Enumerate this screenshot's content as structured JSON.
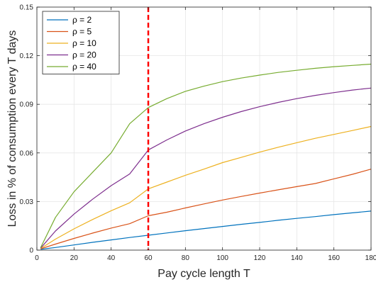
{
  "chart_data": {
    "type": "line",
    "title": "",
    "xlabel": "Pay cycle length T",
    "ylabel": "Loss in % of consumption every T days",
    "xlim": [
      0,
      180
    ],
    "ylim": [
      0,
      0.15
    ],
    "xticks": [
      0,
      20,
      40,
      60,
      80,
      100,
      120,
      140,
      160,
      180
    ],
    "yticks": [
      0,
      0.03,
      0.06,
      0.09,
      0.12,
      0.15
    ],
    "xtick_labels": [
      "0",
      "20",
      "40",
      "60",
      "80",
      "100",
      "120",
      "140",
      "160",
      "180"
    ],
    "ytick_labels": [
      "0",
      "0.03",
      "0.06",
      "0.09",
      "0.12",
      "0.15"
    ],
    "grid": true,
    "legend_position": "top-left",
    "x": [
      2,
      10,
      20,
      30,
      40,
      50,
      60,
      70,
      80,
      90,
      100,
      110,
      120,
      130,
      140,
      150,
      160,
      170,
      180
    ],
    "series": [
      {
        "name": "ρ = 2",
        "color": "#0072BD",
        "values": [
          0.0005,
          0.0016,
          0.0032,
          0.0048,
          0.0063,
          0.0078,
          0.0092,
          0.0106,
          0.012,
          0.0133,
          0.0146,
          0.0159,
          0.0171,
          0.0184,
          0.0196,
          0.0207,
          0.0219,
          0.023,
          0.0241
        ]
      },
      {
        "name": "ρ = 5",
        "color": "#D95319",
        "values": [
          0.0008,
          0.0037,
          0.0072,
          0.0105,
          0.0136,
          0.0163,
          0.0212,
          0.0234,
          0.026,
          0.0285,
          0.0309,
          0.0331,
          0.0352,
          0.0372,
          0.0392,
          0.0411,
          0.044,
          0.0468,
          0.05
        ]
      },
      {
        "name": "ρ = 10",
        "color": "#EDB120",
        "values": [
          0.001,
          0.0068,
          0.0131,
          0.0189,
          0.0243,
          0.0292,
          0.0378,
          0.042,
          0.0462,
          0.05,
          0.054,
          0.0572,
          0.0605,
          0.0635,
          0.0663,
          0.069,
          0.0714,
          0.0738,
          0.0763
        ]
      },
      {
        "name": "ρ = 20",
        "color": "#7E2F8E",
        "values": [
          0.0012,
          0.0118,
          0.0222,
          0.0314,
          0.0398,
          0.047,
          0.0618,
          0.068,
          0.0735,
          0.078,
          0.082,
          0.0855,
          0.0885,
          0.0912,
          0.0935,
          0.0955,
          0.0972,
          0.0988,
          0.1
        ]
      },
      {
        "name": "ρ = 40",
        "color": "#77AC30",
        "values": [
          0.0015,
          0.0202,
          0.036,
          0.048,
          0.06,
          0.078,
          0.088,
          0.0935,
          0.098,
          0.1012,
          0.104,
          0.1062,
          0.108,
          0.1097,
          0.111,
          0.1122,
          0.1132,
          0.114,
          0.1148
        ]
      }
    ],
    "annotations": [
      {
        "type": "vline",
        "x": 60,
        "color": "#ff0000",
        "style": "dashed"
      }
    ]
  }
}
